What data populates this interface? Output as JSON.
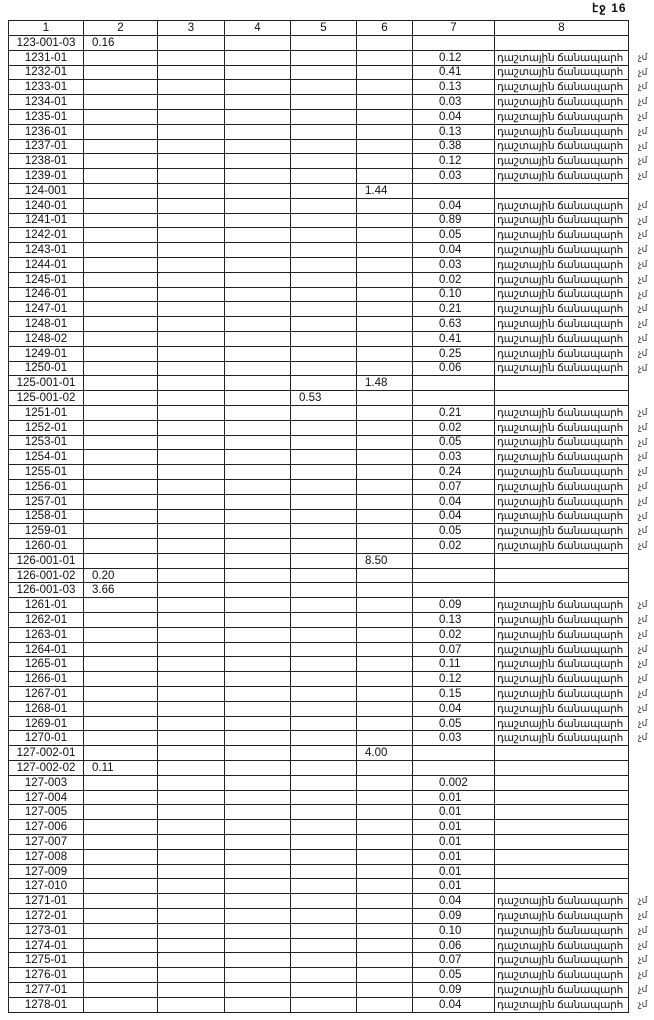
{
  "page_label": "էջ 16",
  "columns": [
    "1",
    "2",
    "3",
    "4",
    "5",
    "6",
    "7",
    "8"
  ],
  "road_text": "դաշտային ճանապարհ",
  "mark_text": "չմ",
  "rows": [
    {
      "c1": "123-001-03",
      "c2": "0.16"
    },
    {
      "c1": "1231-01",
      "c7": "0.12",
      "road": true
    },
    {
      "c1": "1232-01",
      "c7": "0.41",
      "road": true
    },
    {
      "c1": "1233-01",
      "c7": "0.13",
      "road": true
    },
    {
      "c1": "1234-01",
      "c7": "0.03",
      "road": true
    },
    {
      "c1": "1235-01",
      "c7": "0.04",
      "road": true
    },
    {
      "c1": "1236-01",
      "c7": "0.13",
      "road": true
    },
    {
      "c1": "1237-01",
      "c7": "0.38",
      "road": true
    },
    {
      "c1": "1238-01",
      "c7": "0.12",
      "road": true
    },
    {
      "c1": "1239-01",
      "c7": "0.03",
      "road": true
    },
    {
      "c1": "124-001",
      "c6": "1.44"
    },
    {
      "c1": "1240-01",
      "c7": "0.04",
      "road": true
    },
    {
      "c1": "1241-01",
      "c7": "0.89",
      "road": true
    },
    {
      "c1": "1242-01",
      "c7": "0.05",
      "road": true
    },
    {
      "c1": "1243-01",
      "c7": "0.04",
      "road": true
    },
    {
      "c1": "1244-01",
      "c7": "0.03",
      "road": true
    },
    {
      "c1": "1245-01",
      "c7": "0.02",
      "road": true
    },
    {
      "c1": "1246-01",
      "c7": "0.10",
      "road": true
    },
    {
      "c1": "1247-01",
      "c7": "0.21",
      "road": true
    },
    {
      "c1": "1248-01",
      "c7": "0.63",
      "road": true
    },
    {
      "c1": "1248-02",
      "c7": "0.41",
      "road": true
    },
    {
      "c1": "1249-01",
      "c7": "0.25",
      "road": true
    },
    {
      "c1": "1250-01",
      "c7": "0.06",
      "road": true
    },
    {
      "c1": "125-001-01",
      "c6": "1.48"
    },
    {
      "c1": "125-001-02",
      "c5": "0.53"
    },
    {
      "c1": "1251-01",
      "c7": "0.21",
      "road": true
    },
    {
      "c1": "1252-01",
      "c7": "0.02",
      "road": true
    },
    {
      "c1": "1253-01",
      "c7": "0.05",
      "road": true
    },
    {
      "c1": "1254-01",
      "c7": "0.03",
      "road": true
    },
    {
      "c1": "1255-01",
      "c7": "0.24",
      "road": true
    },
    {
      "c1": "1256-01",
      "c7": "0.07",
      "road": true
    },
    {
      "c1": "1257-01",
      "c7": "0.04",
      "road": true
    },
    {
      "c1": "1258-01",
      "c7": "0.04",
      "road": true
    },
    {
      "c1": "1259-01",
      "c7": "0.05",
      "road": true
    },
    {
      "c1": "1260-01",
      "c7": "0.02",
      "road": true
    },
    {
      "c1": "126-001-01",
      "c6": "8.50"
    },
    {
      "c1": "126-001-02",
      "c2": "0.20"
    },
    {
      "c1": "126-001-03",
      "c2": "3.66"
    },
    {
      "c1": "1261-01",
      "c7": "0.09",
      "road": true
    },
    {
      "c1": "1262-01",
      "c7": "0.13",
      "road": true
    },
    {
      "c1": "1263-01",
      "c7": "0.02",
      "road": true
    },
    {
      "c1": "1264-01",
      "c7": "0.07",
      "road": true
    },
    {
      "c1": "1265-01",
      "c7": "0.11",
      "road": true
    },
    {
      "c1": "1266-01",
      "c7": "0.12",
      "road": true
    },
    {
      "c1": "1267-01",
      "c7": "0.15",
      "road": true
    },
    {
      "c1": "1268-01",
      "c7": "0.04",
      "road": true
    },
    {
      "c1": "1269-01",
      "c7": "0.05",
      "road": true
    },
    {
      "c1": "1270-01",
      "c7": "0.03",
      "road": true
    },
    {
      "c1": "127-002-01",
      "c6": "4.00"
    },
    {
      "c1": "127-002-02",
      "c2": "0.11"
    },
    {
      "c1": "127-003",
      "c7": "0.002"
    },
    {
      "c1": "127-004",
      "c7": "0.01"
    },
    {
      "c1": "127-005",
      "c7": "0.01"
    },
    {
      "c1": "127-006",
      "c7": "0.01"
    },
    {
      "c1": "127-007",
      "c7": "0.01"
    },
    {
      "c1": "127-008",
      "c7": "0.01"
    },
    {
      "c1": "127-009",
      "c7": "0.01"
    },
    {
      "c1": "127-010",
      "c7": "0.01"
    },
    {
      "c1": "1271-01",
      "c7": "0.04",
      "road": true
    },
    {
      "c1": "1272-01",
      "c7": "0.09",
      "road": true
    },
    {
      "c1": "1273-01",
      "c7": "0.10",
      "road": true
    },
    {
      "c1": "1274-01",
      "c7": "0.06",
      "road": true
    },
    {
      "c1": "1275-01",
      "c7": "0.07",
      "road": true
    },
    {
      "c1": "1276-01",
      "c7": "0.05",
      "road": true
    },
    {
      "c1": "1277-01",
      "c7": "0.09",
      "road": true
    },
    {
      "c1": "1278-01",
      "c7": "0.04",
      "road": true
    }
  ]
}
